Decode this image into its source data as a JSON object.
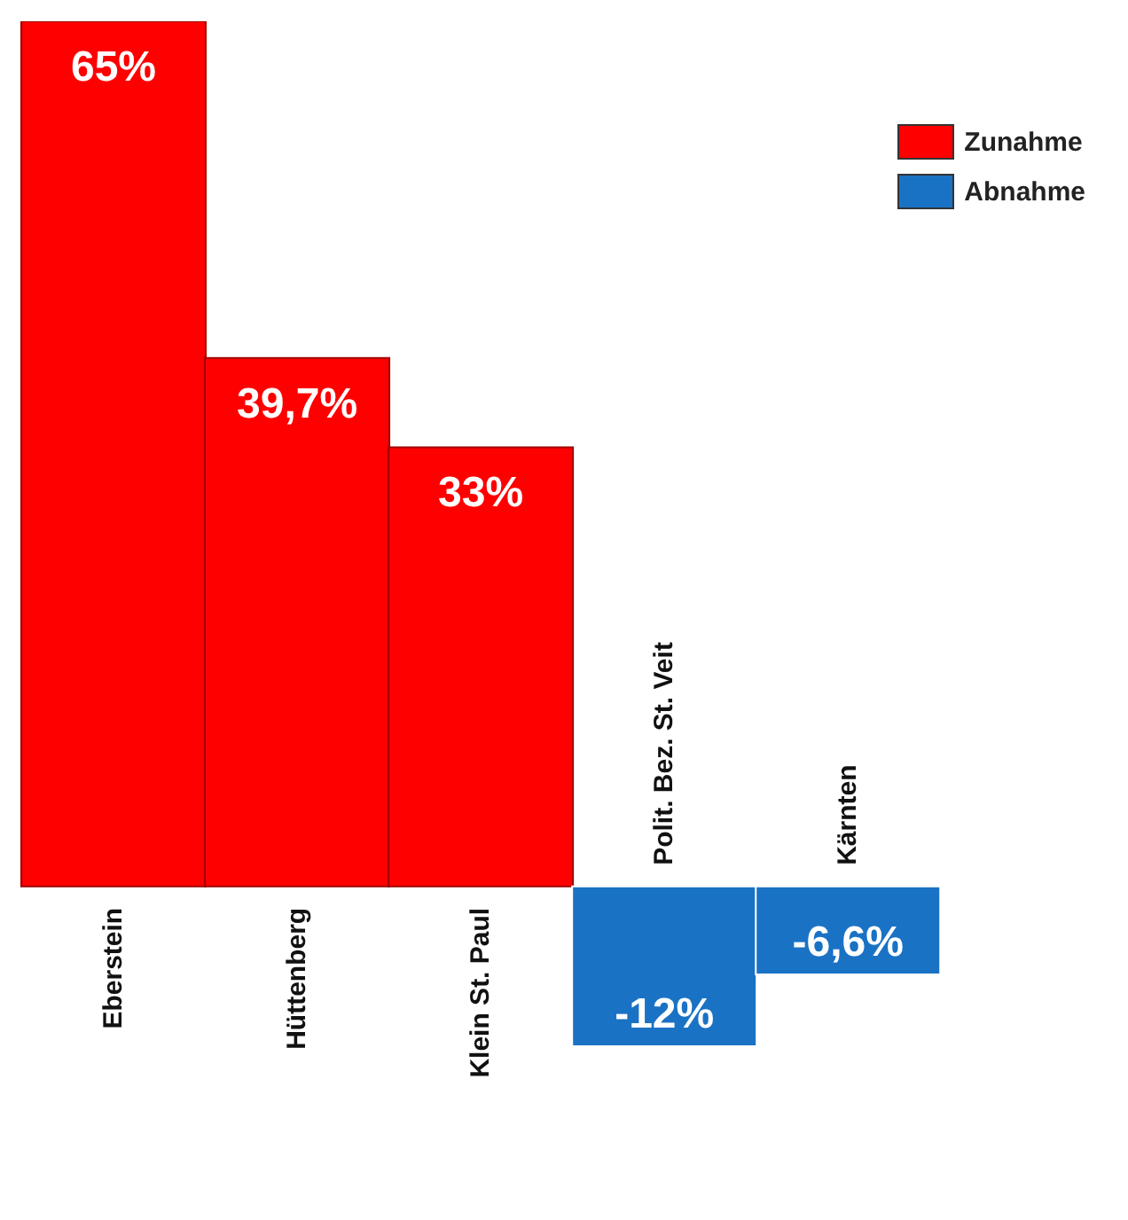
{
  "chart_data": {
    "type": "bar",
    "categories": [
      "Eberstein",
      "Hüttenberg",
      "Klein St. Paul",
      "Polit. Bez. St. Veit",
      "Kärnten"
    ],
    "series": [
      {
        "name": "Zunahme",
        "color": "#ff0000",
        "values": [
          65,
          39.7,
          33,
          null,
          null
        ],
        "value_labels": [
          "65%",
          "39,7%",
          "33%",
          null,
          null
        ]
      },
      {
        "name": "Abnahme",
        "color": "#1a72c4",
        "values": [
          null,
          null,
          null,
          -12,
          -6.6
        ],
        "value_labels": [
          null,
          null,
          null,
          "-12%",
          "-6,6%"
        ]
      }
    ],
    "legend": "top right",
    "grid": false,
    "tick_labels": "x"
  }
}
